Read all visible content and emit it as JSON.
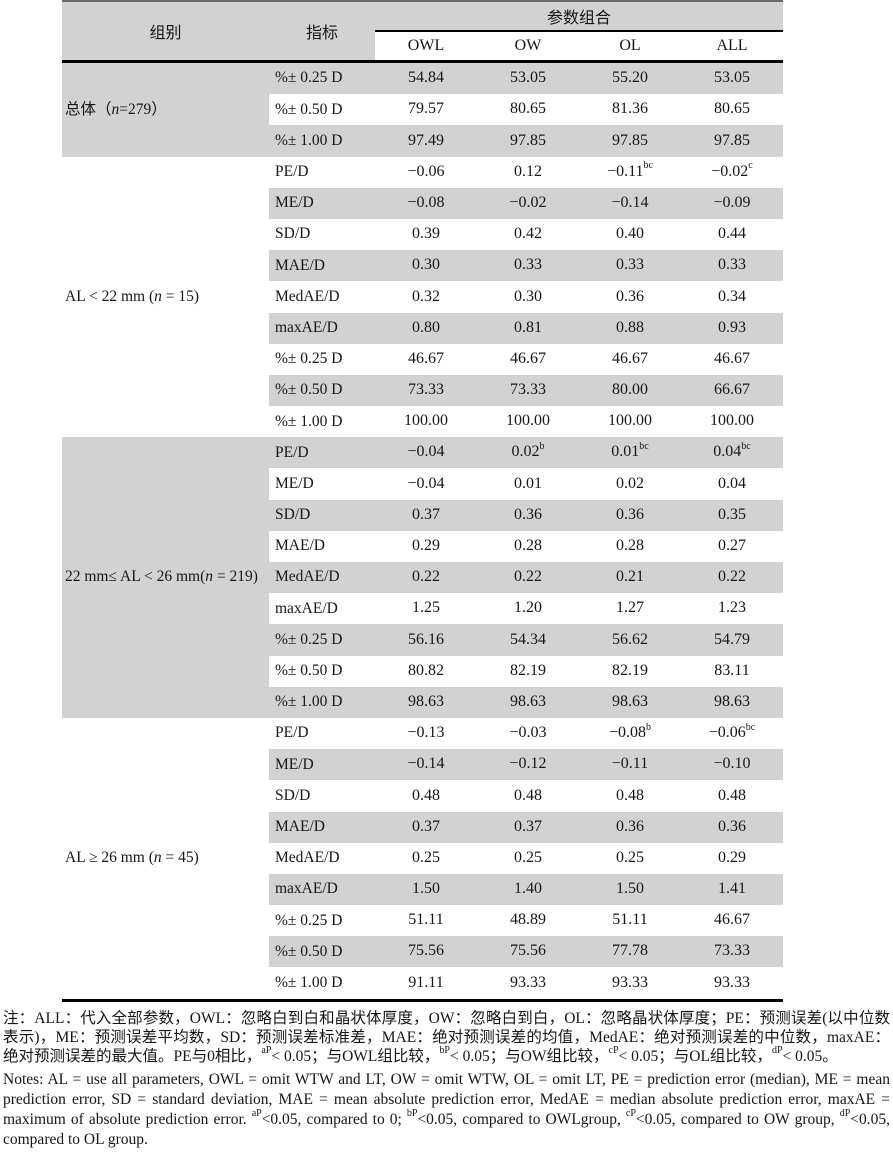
{
  "table": {
    "header": {
      "col_group": "组别",
      "col_indicator": "指标",
      "param_group_title": "参数组合",
      "param_columns": [
        "OWL",
        "OW",
        "OL",
        "ALL"
      ]
    },
    "groups": [
      {
        "label": "总体（n=279）",
        "rows": [
          {
            "indicator": "%± 0.25 D",
            "values": [
              "54.84",
              "53.05",
              "55.20",
              "53.05"
            ]
          },
          {
            "indicator": "%± 0.50 D",
            "values": [
              "79.57",
              "80.65",
              "81.36",
              "80.65"
            ]
          },
          {
            "indicator": "%± 1.00 D",
            "values": [
              "97.49",
              "97.85",
              "97.85",
              "97.85"
            ]
          }
        ]
      },
      {
        "label": "AL < 22 mm (n = 15)",
        "rows": [
          {
            "indicator": "PE/D",
            "values": [
              "−0.06",
              "0.12",
              "−0.11^bc",
              "−0.02^c"
            ]
          },
          {
            "indicator": "ME/D",
            "values": [
              "−0.08",
              "−0.02",
              "−0.14",
              "−0.09"
            ]
          },
          {
            "indicator": "SD/D",
            "values": [
              "0.39",
              "0.42",
              "0.40",
              "0.44"
            ]
          },
          {
            "indicator": "MAE/D",
            "values": [
              "0.30",
              "0.33",
              "0.33",
              "0.33"
            ]
          },
          {
            "indicator": "MedAE/D",
            "values": [
              "0.32",
              "0.30",
              "0.36",
              "0.34"
            ]
          },
          {
            "indicator": "maxAE/D",
            "values": [
              "0.80",
              "0.81",
              "0.88",
              "0.93"
            ]
          },
          {
            "indicator": "%± 0.25 D",
            "values": [
              "46.67",
              "46.67",
              "46.67",
              "46.67"
            ]
          },
          {
            "indicator": "%± 0.50 D",
            "values": [
              "73.33",
              "73.33",
              "80.00",
              "66.67"
            ]
          },
          {
            "indicator": "%± 1.00 D",
            "values": [
              "100.00",
              "100.00",
              "100.00",
              "100.00"
            ]
          }
        ]
      },
      {
        "label": "22 mm≤ AL < 26 mm(n = 219)",
        "rows": [
          {
            "indicator": "PE/D",
            "values": [
              "−0.04",
              "0.02^b",
              "0.01^bc",
              "0.04^bc"
            ]
          },
          {
            "indicator": "ME/D",
            "values": [
              "−0.04",
              "0.01",
              "0.02",
              "0.04"
            ]
          },
          {
            "indicator": "SD/D",
            "values": [
              "0.37",
              "0.36",
              "0.36",
              "0.35"
            ]
          },
          {
            "indicator": "MAE/D",
            "values": [
              "0.29",
              "0.28",
              "0.28",
              "0.27"
            ]
          },
          {
            "indicator": "MedAE/D",
            "values": [
              "0.22",
              "0.22",
              "0.21",
              "0.22"
            ]
          },
          {
            "indicator": "maxAE/D",
            "values": [
              "1.25",
              "1.20",
              "1.27",
              "1.23"
            ]
          },
          {
            "indicator": "%± 0.25 D",
            "values": [
              "56.16",
              "54.34",
              "56.62",
              "54.79"
            ]
          },
          {
            "indicator": "%± 0.50 D",
            "values": [
              "80.82",
              "82.19",
              "82.19",
              "83.11"
            ]
          },
          {
            "indicator": "%± 1.00 D",
            "values": [
              "98.63",
              "98.63",
              "98.63",
              "98.63"
            ]
          }
        ]
      },
      {
        "label": "AL ≥ 26 mm (n = 45)",
        "rows": [
          {
            "indicator": "PE/D",
            "values": [
              "−0.13",
              "−0.03",
              "−0.08^b",
              "−0.06^bc"
            ]
          },
          {
            "indicator": "ME/D",
            "values": [
              "−0.14",
              "−0.12",
              "−0.11",
              "−0.10"
            ]
          },
          {
            "indicator": "SD/D",
            "values": [
              "0.48",
              "0.48",
              "0.48",
              "0.48"
            ]
          },
          {
            "indicator": "MAE/D",
            "values": [
              "0.37",
              "0.37",
              "0.36",
              "0.36"
            ]
          },
          {
            "indicator": "MedAE/D",
            "values": [
              "0.25",
              "0.25",
              "0.25",
              "0.29"
            ]
          },
          {
            "indicator": "maxAE/D",
            "values": [
              "1.50",
              "1.40",
              "1.50",
              "1.41"
            ]
          },
          {
            "indicator": "%± 0.25 D",
            "values": [
              "51.11",
              "48.89",
              "51.11",
              "46.67"
            ]
          },
          {
            "indicator": "%± 0.50 D",
            "values": [
              "75.56",
              "75.56",
              "77.78",
              "73.33"
            ]
          },
          {
            "indicator": "%± 1.00 D",
            "values": [
              "91.11",
              "93.33",
              "93.33",
              "93.33"
            ]
          }
        ]
      }
    ]
  },
  "notes": {
    "chinese": "注：ALL：代入全部参数，OWL：忽略白到白和晶状体厚度，OW：忽略白到白，OL：忽略晶状体厚度；PE：预测误差(以中位数表示)，ME：预测误差平均数，SD：预测误差标准差，MAE：绝对预测误差的均值，MedAE：绝对预测误差的中位数，maxAE：绝对预测误差的最大值。PE与0相比，^aP< 0.05；与OWL组比较，^bP< 0.05；与OW组比较，^cP< 0.05；与OL组比较，^dP< 0.05。",
    "english": "Notes: AL = use all parameters, OWL = omit WTW and LT, OW = omit WTW, OL = omit LT, PE = prediction error (median), ME = mean prediction error, SD = standard deviation, MAE = mean absolute prediction error, MedAE = median absolute prediction error, maxAE = maximum of absolute prediction error. ^aP<0.05, compared to 0; ^bP<0.05, compared to OWLgroup, ^cP<0.05, compared to OW group, ^dP<0.05, compared to OL group."
  },
  "colors": {
    "stripe": "#d2d2d2",
    "rule": "#000000",
    "top_rule": "#6a6a6a",
    "text": "#161616"
  }
}
